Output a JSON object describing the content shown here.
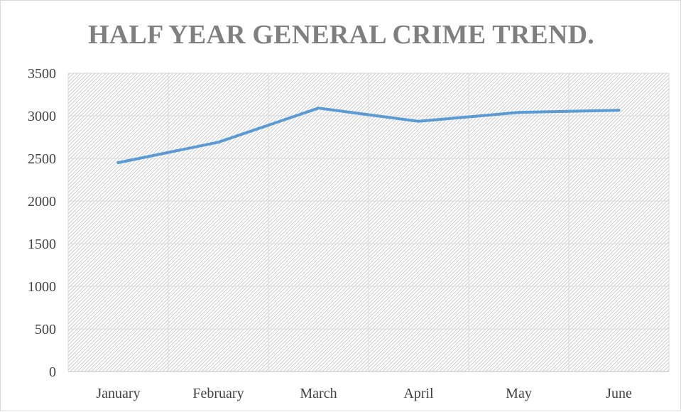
{
  "chart_data": {
    "type": "line",
    "title": "HALF YEAR GENERAL CRIME TREND.",
    "xlabel": "",
    "ylabel": "",
    "categories": [
      "January",
      "February",
      "March",
      "April",
      "May",
      "June"
    ],
    "series": [
      {
        "values": [
          2450,
          2690,
          3090,
          2935,
          3040,
          3065
        ],
        "color": "#5b9bd5"
      }
    ],
    "ylim": [
      0,
      3500
    ],
    "yticks": [
      0,
      500,
      1000,
      1500,
      2000,
      2500,
      3000,
      3500
    ],
    "grid": true,
    "legend": "none"
  }
}
